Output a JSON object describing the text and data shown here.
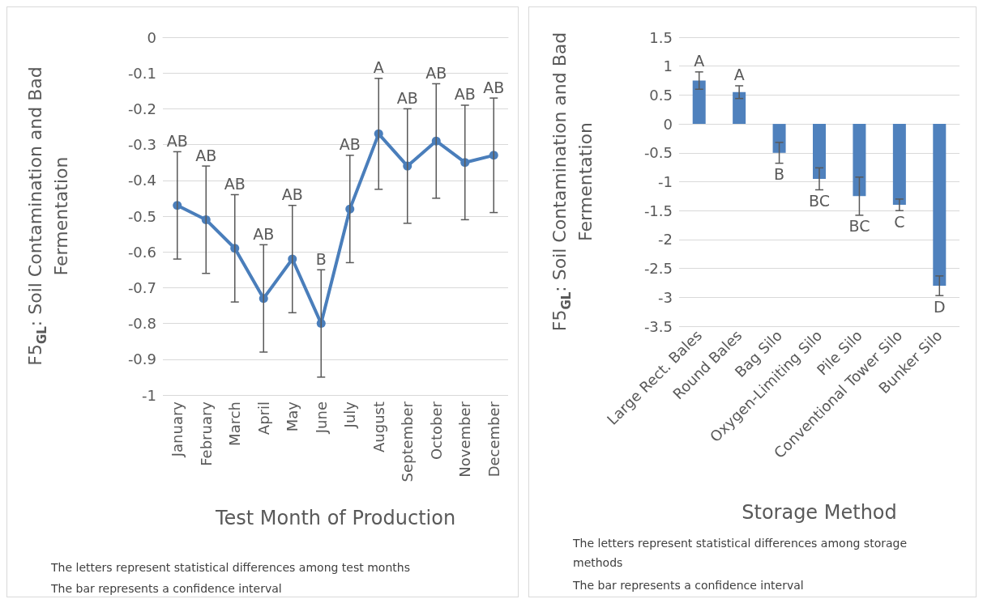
{
  "chart_data": [
    {
      "type": "line",
      "categories": [
        "January",
        "February",
        "March",
        "April",
        "May",
        "June",
        "July",
        "August",
        "September",
        "October",
        "November",
        "December"
      ],
      "values": [
        -0.47,
        -0.51,
        -0.59,
        -0.73,
        -0.62,
        -0.8,
        -0.48,
        -0.27,
        -0.36,
        -0.29,
        -0.35,
        -0.33
      ],
      "errors": [
        0.15,
        0.15,
        0.15,
        0.15,
        0.15,
        0.15,
        0.15,
        0.155,
        0.16,
        0.16,
        0.16,
        0.16
      ],
      "color": "#4a7ebb",
      "marker": "circle",
      "ylim": [
        -1,
        0
      ],
      "yticks": [
        -1,
        -0.9,
        -0.8,
        -0.7,
        -0.6,
        -0.5,
        -0.4,
        -0.3,
        -0.2,
        -0.1,
        0
      ],
      "grid": "y",
      "xlabel": "Test Month of Production",
      "ylabel": "F5$_{GL}$: Soil Contamination and Bad Fermentation",
      "annotations": [
        {
          "text": "AB",
          "x": "January",
          "y": -0.32
        },
        {
          "text": "AB",
          "x": "February",
          "y": -0.36
        },
        {
          "text": "AB",
          "x": "March",
          "y": -0.44
        },
        {
          "text": "AB",
          "x": "April",
          "y": -0.58
        },
        {
          "text": "AB",
          "x": "May",
          "y": -0.47
        },
        {
          "text": "B",
          "x": "June",
          "y": -0.65
        },
        {
          "text": "AB",
          "x": "July",
          "y": -0.33
        },
        {
          "text": "A",
          "x": "August",
          "y": -0.115
        },
        {
          "text": "AB",
          "x": "September",
          "y": -0.2
        },
        {
          "text": "AB",
          "x": "October",
          "y": -0.13
        },
        {
          "text": "AB",
          "x": "November",
          "y": -0.19
        },
        {
          "text": "AB",
          "x": "December",
          "y": -0.17
        },
        "The letters represent statistical differences among test months",
        "The bar represents a confidence interval"
      ]
    },
    {
      "type": "bar",
      "categories": [
        "Large Rect. Bales",
        "Round Bales",
        "Bag Silo",
        "Oxygen-Limiting Silo",
        "Pile Silo",
        "Conventional Tower Silo",
        "Bunker Silo"
      ],
      "values": [
        0.75,
        0.55,
        -0.5,
        -0.95,
        -1.25,
        -1.4,
        -2.8
      ],
      "errors": [
        0.15,
        0.11,
        0.18,
        0.19,
        0.33,
        0.1,
        0.17
      ],
      "color": "#4f81bd",
      "ylim": [
        -3.5,
        1.5
      ],
      "yticks": [
        -3.5,
        -3,
        -2.5,
        -2,
        -1.5,
        -1,
        -0.5,
        0,
        0.5,
        1,
        1.5
      ],
      "grid": "y",
      "xlabel": "Storage Method",
      "ylabel": "F5$_{GL}$: Soil Contamination and Bad Fermentation",
      "annotations": [
        {
          "text": "A",
          "x": "Large Rect. Bales",
          "y": 0.9
        },
        {
          "text": "A",
          "x": "Round Bales",
          "y": 0.66
        },
        {
          "text": "B",
          "x": "Bag Silo",
          "y": -0.68
        },
        {
          "text": "BC",
          "x": "Oxygen-Limiting Silo",
          "y": -1.14
        },
        {
          "text": "BC",
          "x": "Pile Silo",
          "y": -1.58
        },
        {
          "text": "C",
          "x": "Conventional Tower Silo",
          "y": -1.5
        },
        {
          "text": "D",
          "x": "Bunker Silo",
          "y": -2.97
        },
        "The letters represent statistical differences among storage methods",
        "The bar represents a confidence interval"
      ]
    }
  ]
}
